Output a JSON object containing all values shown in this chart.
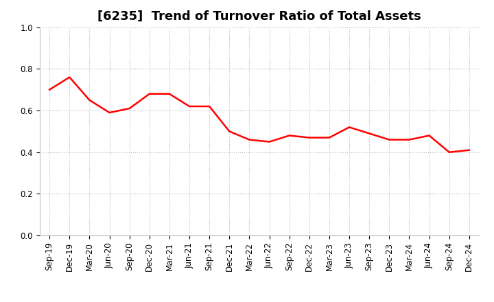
{
  "title": "[6235]  Trend of Turnover Ratio of Total Assets",
  "labels": [
    "Sep-19",
    "Dec-19",
    "Mar-20",
    "Jun-20",
    "Sep-20",
    "Dec-20",
    "Mar-21",
    "Jun-21",
    "Sep-21",
    "Dec-21",
    "Mar-22",
    "Jun-22",
    "Sep-22",
    "Dec-22",
    "Mar-23",
    "Jun-23",
    "Sep-23",
    "Dec-23",
    "Mar-24",
    "Jun-24",
    "Sep-24",
    "Dec-24"
  ],
  "values": [
    0.7,
    0.76,
    0.65,
    0.59,
    0.61,
    0.68,
    0.68,
    0.62,
    0.62,
    0.5,
    0.46,
    0.45,
    0.48,
    0.47,
    0.47,
    0.52,
    0.49,
    0.46,
    0.46,
    0.48,
    0.4,
    0.41
  ],
  "line_color": "#FF0000",
  "line_width": 1.8,
  "ylim": [
    0.0,
    1.0
  ],
  "yticks": [
    0.0,
    0.2,
    0.4,
    0.6,
    0.8,
    1.0
  ],
  "background_color": "#FFFFFF",
  "grid_color": "#BBBBBB",
  "title_fontsize": 13,
  "tick_fontsize": 8.5
}
